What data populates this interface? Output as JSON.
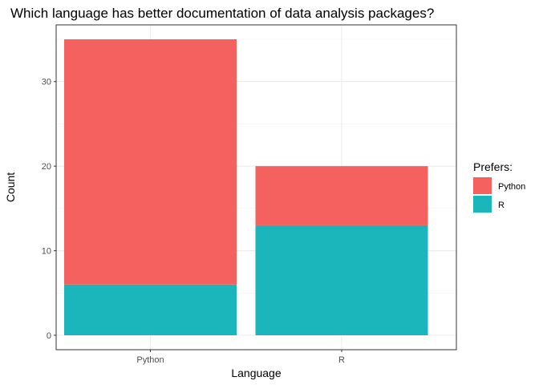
{
  "chart_data": {
    "type": "bar",
    "stacked": true,
    "title": "Which language has better documentation of data analysis packages?",
    "xlabel": "Language",
    "ylabel": "Count",
    "categories": [
      "Python",
      "R"
    ],
    "series": [
      {
        "name": "R",
        "values": [
          6,
          13
        ],
        "color": "#1ab6bb"
      },
      {
        "name": "Python",
        "values": [
          29,
          7
        ],
        "color": "#f4615e"
      }
    ],
    "totals": [
      35,
      20
    ],
    "ylim": [
      0,
      36.75
    ],
    "yticks": [
      0,
      10,
      20,
      30
    ],
    "grid": true,
    "legend": {
      "title": "Prefers:",
      "position": "right",
      "items": [
        {
          "label": "Python",
          "color": "#f4615e"
        },
        {
          "label": "R",
          "color": "#1ab6bb"
        }
      ]
    }
  }
}
